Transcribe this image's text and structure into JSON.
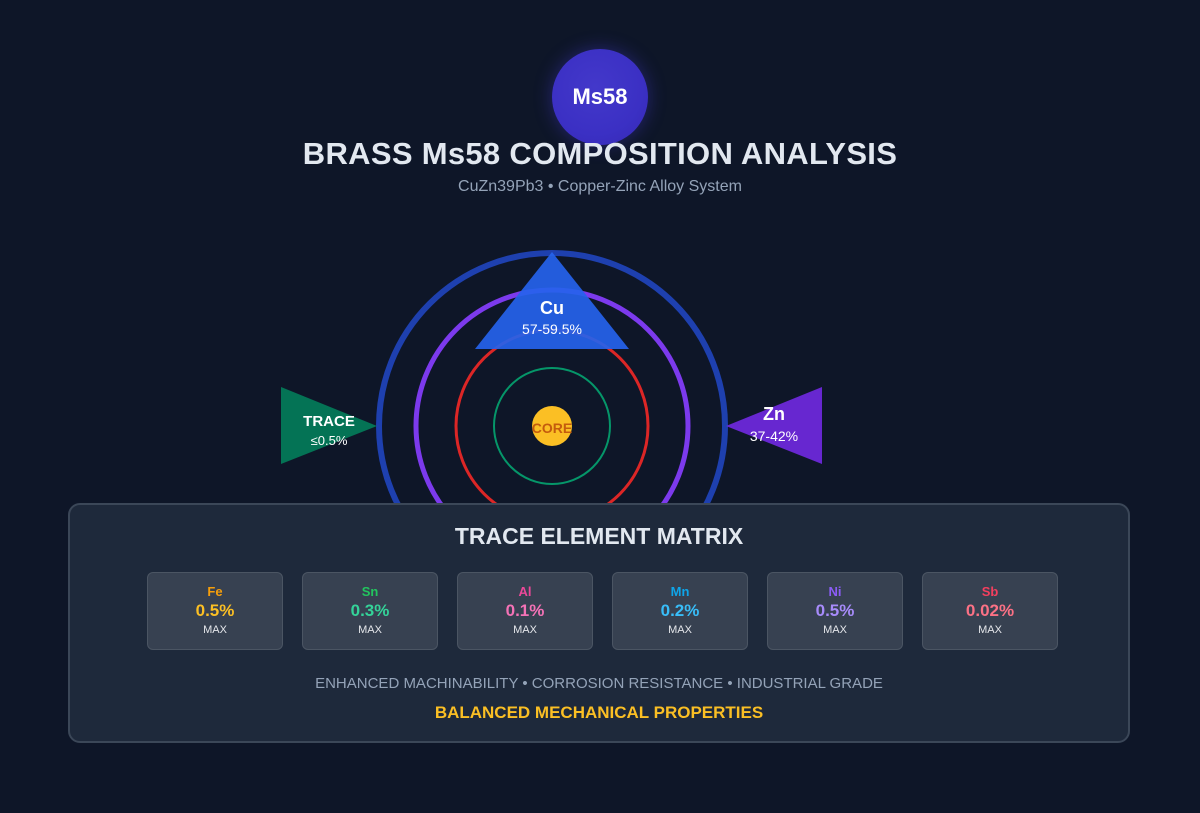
{
  "header": {
    "badge_label": "Ms58",
    "title": "BRASS Ms58 COMPOSITION ANALYSIS",
    "subtitle": "CuZn39Pb3 • Copper-Zinc Alloy System"
  },
  "diagram": {
    "core_label": "CORE",
    "elements": {
      "cu": {
        "symbol": "Cu",
        "range": "57-59.5%",
        "color": "#2563eb"
      },
      "zn": {
        "symbol": "Zn",
        "range": "37-42%",
        "color": "#6d28d9"
      },
      "trace": {
        "symbol": "TRACE",
        "range": "≤0.5%",
        "color": "#047857"
      }
    },
    "ring_colors": [
      "#1e40af",
      "#7c3aed",
      "#dc2626",
      "#059669"
    ],
    "core_color": "#fbbf24"
  },
  "matrix": {
    "title": "TRACE ELEMENT MATRIX",
    "tiles": [
      {
        "symbol": "Fe",
        "value": "0.5%",
        "limit": "MAX",
        "symbol_color": "#f59e0b",
        "value_color": "#fbbf24"
      },
      {
        "symbol": "Sn",
        "value": "0.3%",
        "limit": "MAX",
        "symbol_color": "#22c55e",
        "value_color": "#34d399"
      },
      {
        "symbol": "Al",
        "value": "0.1%",
        "limit": "MAX",
        "symbol_color": "#ec4899",
        "value_color": "#f472b6"
      },
      {
        "symbol": "Mn",
        "value": "0.2%",
        "limit": "MAX",
        "symbol_color": "#0ea5e9",
        "value_color": "#38bdf8"
      },
      {
        "symbol": "Ni",
        "value": "0.5%",
        "limit": "MAX",
        "symbol_color": "#8b5cf6",
        "value_color": "#a78bfa"
      },
      {
        "symbol": "Sb",
        "value": "0.02%",
        "limit": "MAX",
        "symbol_color": "#f43f5e",
        "value_color": "#fb7185"
      }
    ],
    "features": "ENHANCED MACHINABILITY • CORROSION RESISTANCE • INDUSTRIAL GRADE",
    "tagline": "BALANCED MECHANICAL PROPERTIES"
  }
}
